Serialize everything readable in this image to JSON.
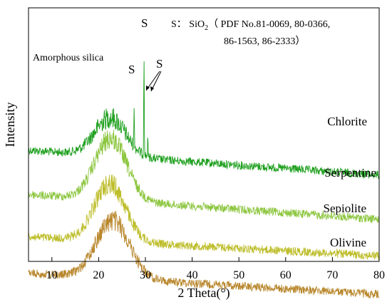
{
  "chart_data": {
    "type": "line",
    "xlabel": "2 Theta(°)",
    "ylabel": "Intensity",
    "xlim": [
      5,
      80
    ],
    "x_ticks": [
      10,
      20,
      30,
      40,
      50,
      60,
      70,
      80
    ],
    "x_tick_labels": [
      "10",
      "20",
      "30",
      "40",
      "50",
      "60",
      "70",
      "80"
    ],
    "grid": false,
    "y_ticks_shown": false,
    "series": [
      {
        "name": "Chlorite",
        "color": "#1fa01f",
        "baseline_left": 0.74,
        "baseline_right": 0.87,
        "hump_center": 22.5,
        "hump_height": 0.2,
        "hump_width": 3.3,
        "noise": 0.022,
        "sharp_peaks": [
          {
            "x": 27.6,
            "height": 0.19
          },
          {
            "x": 29.7,
            "height": 0.53
          },
          {
            "x": 30.5,
            "height": 0.1
          }
        ]
      },
      {
        "name": "Serpentine",
        "color": "#8cc63f",
        "baseline_left": 0.97,
        "baseline_right": 1.1,
        "hump_center": 22.6,
        "hump_height": 0.32,
        "hump_width": 3.4,
        "noise": 0.022,
        "sharp_peaks": []
      },
      {
        "name": "Sepiolite",
        "color": "#bdbd2a",
        "baseline_left": 1.19,
        "baseline_right": 1.29,
        "hump_center": 22.4,
        "hump_height": 0.3,
        "hump_width": 3.3,
        "noise": 0.022,
        "sharp_peaks": []
      },
      {
        "name": "Olivine",
        "color": "#b8862b",
        "baseline_left": 1.38,
        "baseline_right": 1.49,
        "hump_center": 23.0,
        "hump_height": 0.3,
        "hump_width": 3.6,
        "noise": 0.022,
        "sharp_peaks": []
      }
    ],
    "annotations": {
      "amorphous": "Amorphous silica",
      "s_label": "S",
      "legend_line1": "S： SiO",
      "legend_sub": "2",
      "legend_line1_rest": "（ PDF No.81-0069, 80-0366,",
      "legend_line2": "86-1563, 86-2333）"
    }
  }
}
